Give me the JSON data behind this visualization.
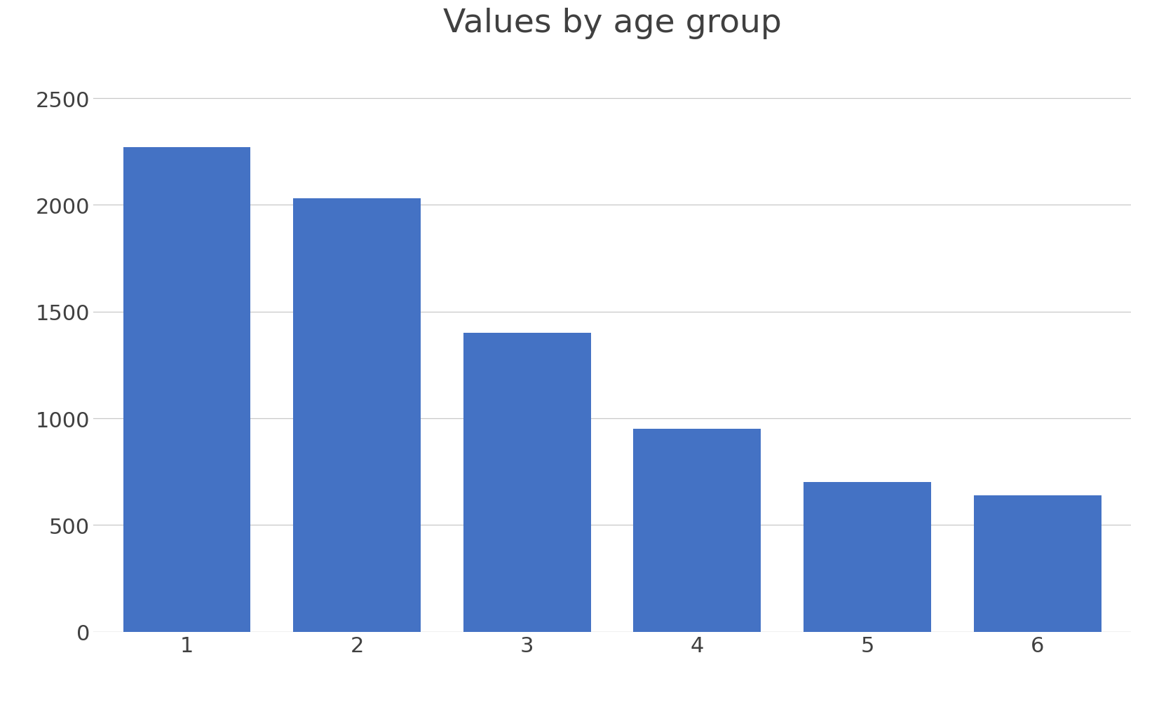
{
  "title": "Values by age group",
  "categories": [
    1,
    2,
    3,
    4,
    5,
    6
  ],
  "values": [
    2270,
    2030,
    1400,
    950,
    700,
    640
  ],
  "bar_color": "#4472C4",
  "ylim": [
    0,
    2700
  ],
  "yticks": [
    0,
    500,
    1000,
    1500,
    2000,
    2500
  ],
  "title_fontsize": 34,
  "tick_fontsize": 22,
  "background_color": "#ffffff",
  "grid_color": "#c8c8c8",
  "bar_width": 0.75
}
